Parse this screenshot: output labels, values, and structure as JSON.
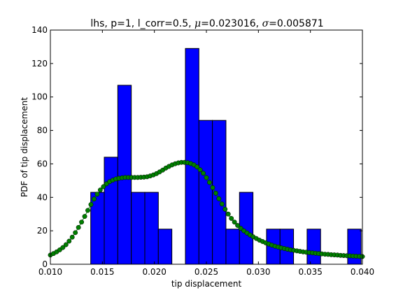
{
  "chart_data": {
    "type": "bar",
    "title": "lhs, p=1, l_corr=0.5, μ=0.023016, σ=0.005871",
    "title_parts": {
      "prefix": "lhs, p=1, l_corr=0.5, ",
      "mu_symbol": "μ",
      "mu_value": "=0.023016, ",
      "sigma_symbol": "σ",
      "sigma_value": "=0.005871"
    },
    "xlabel": "tip displacement",
    "ylabel": "PDF of tip displacement",
    "xlim": [
      0.01,
      0.04
    ],
    "ylim": [
      0,
      140
    ],
    "x_ticks": [
      0.01,
      0.015,
      0.02,
      0.025,
      0.03,
      0.035,
      0.04
    ],
    "x_tick_labels": [
      "0.010",
      "0.015",
      "0.020",
      "0.025",
      "0.030",
      "0.035",
      "0.040"
    ],
    "y_ticks": [
      0,
      20,
      40,
      60,
      80,
      100,
      120,
      140
    ],
    "y_tick_labels": [
      "0",
      "20",
      "40",
      "60",
      "80",
      "100",
      "120",
      "140"
    ],
    "grid": false,
    "colors": {
      "bars": "#0000ff",
      "curve": "#007f00",
      "axes": "#000000"
    },
    "histogram": {
      "bin_edges": [
        0.01388,
        0.01518,
        0.01648,
        0.01778,
        0.01908,
        0.02038,
        0.02168,
        0.02298,
        0.02428,
        0.02558,
        0.02688,
        0.02818,
        0.02948,
        0.03078,
        0.03208,
        0.03338,
        0.03468,
        0.03598,
        0.03728,
        0.03858,
        0.03988
      ],
      "values": [
        43,
        64,
        107,
        43,
        43,
        21,
        0,
        129,
        86,
        86,
        21,
        43,
        0,
        21,
        21,
        0,
        21,
        0,
        0,
        21
      ]
    },
    "kde": {
      "x": [
        0.01,
        0.0103,
        0.0106,
        0.0109,
        0.0112,
        0.0115,
        0.0118,
        0.0121,
        0.0124,
        0.0127,
        0.013,
        0.0133,
        0.0136,
        0.0139,
        0.0142,
        0.0145,
        0.0148,
        0.0151,
        0.0154,
        0.0157,
        0.016,
        0.0163,
        0.0166,
        0.0169,
        0.0172,
        0.0175,
        0.0178,
        0.0181,
        0.0184,
        0.0187,
        0.019,
        0.0193,
        0.0196,
        0.0199,
        0.0202,
        0.0205,
        0.0208,
        0.0211,
        0.0214,
        0.0217,
        0.022,
        0.0223,
        0.0226,
        0.0229,
        0.0232,
        0.0235,
        0.0238,
        0.0241,
        0.0244,
        0.0247,
        0.025,
        0.0253,
        0.0256,
        0.0259,
        0.0262,
        0.0265,
        0.0268,
        0.0271,
        0.0274,
        0.0277,
        0.028,
        0.0283,
        0.0286,
        0.0289,
        0.0292,
        0.0295,
        0.0298,
        0.0301,
        0.0304,
        0.0307,
        0.031,
        0.0313,
        0.0316,
        0.0319,
        0.0322,
        0.0325,
        0.0328,
        0.0331,
        0.0334,
        0.0337,
        0.034,
        0.0343,
        0.0346,
        0.0349,
        0.0352,
        0.0355,
        0.0358,
        0.0361,
        0.0364,
        0.0367,
        0.037,
        0.0373,
        0.0376,
        0.0379,
        0.0382,
        0.0385,
        0.0388,
        0.0391,
        0.0394,
        0.0397,
        0.04
      ],
      "y": [
        5.5,
        6.4,
        7.4,
        8.6,
        10.0,
        11.7,
        13.8,
        16.2,
        18.9,
        22.0,
        25.2,
        28.6,
        32.2,
        35.7,
        39.0,
        41.9,
        44.4,
        46.4,
        48.1,
        49.4,
        50.3,
        51.0,
        51.4,
        51.7,
        51.9,
        51.9,
        51.9,
        51.9,
        51.9,
        52.0,
        52.1,
        52.3,
        52.8,
        53.4,
        54.2,
        55.2,
        56.3,
        57.5,
        58.5,
        59.4,
        60.1,
        60.6,
        60.9,
        60.9,
        60.7,
        60.2,
        59.4,
        58.2,
        56.5,
        54.4,
        51.8,
        48.9,
        45.8,
        42.5,
        39.2,
        36.0,
        32.9,
        30.0,
        27.4,
        25.2,
        23.2,
        21.5,
        20.0,
        18.7,
        17.5,
        16.4,
        15.4,
        14.4,
        13.6,
        12.8,
        12.1,
        11.4,
        10.8,
        10.3,
        9.8,
        9.4,
        9.0,
        8.6,
        8.3,
        8.0,
        7.7,
        7.4,
        7.2,
        7.0,
        6.8,
        6.6,
        6.4,
        6.2,
        6.0,
        5.9,
        5.7,
        5.6,
        5.5,
        5.3,
        5.2,
        5.1,
        5.0,
        4.9,
        4.8,
        4.7,
        4.6
      ]
    }
  }
}
